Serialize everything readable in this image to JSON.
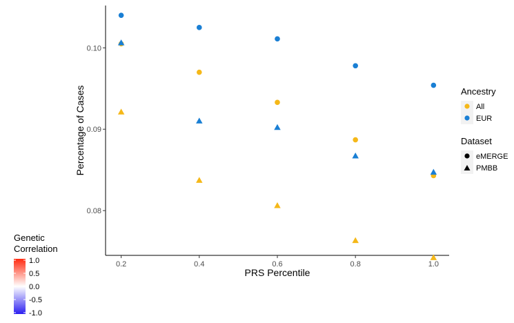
{
  "chart_data": {
    "type": "scatter",
    "xlabel": "PRS Percentile",
    "ylabel": "Percentage of Cases",
    "x": [
      0.2,
      0.4,
      0.6,
      0.8,
      1.0
    ],
    "xlim": [
      0.16,
      1.04
    ],
    "ylim": [
      0.0745,
      0.1052
    ],
    "x_ticks": [
      0.2,
      0.4,
      0.6,
      0.8,
      1.0
    ],
    "x_tick_labels": [
      "0.2",
      "0.4",
      "0.6",
      "0.8",
      "1.0"
    ],
    "y_ticks": [
      0.08,
      0.09,
      0.1
    ],
    "y_tick_labels": [
      "0.08",
      "0.09",
      "0.10"
    ],
    "grid": false,
    "series": [
      {
        "ancestry": "All",
        "dataset": "eMERGE",
        "color": "#f5b819",
        "shape": "circle",
        "values": [
          0.1005,
          0.097,
          0.0933,
          0.0887,
          0.0843
        ]
      },
      {
        "ancestry": "All",
        "dataset": "PMBB",
        "color": "#f5b819",
        "shape": "triangle",
        "values": [
          0.0921,
          0.0837,
          0.0806,
          0.0763,
          0.0742
        ]
      },
      {
        "ancestry": "EUR",
        "dataset": "eMERGE",
        "color": "#1a7fd4",
        "shape": "circle",
        "values": [
          0.104,
          0.1025,
          0.1011,
          0.0978,
          0.0954
        ]
      },
      {
        "ancestry": "EUR",
        "dataset": "PMBB",
        "color": "#1a7fd4",
        "shape": "triangle",
        "values": [
          0.1006,
          0.091,
          0.0902,
          0.0867,
          0.0847
        ]
      }
    ],
    "legends": {
      "ancestry": {
        "title": "Ancestry",
        "items": [
          {
            "label": "All",
            "color": "#f5b819"
          },
          {
            "label": "EUR",
            "color": "#1a7fd4"
          }
        ]
      },
      "dataset": {
        "title": "Dataset",
        "items": [
          {
            "label": "eMERGE",
            "shape": "circle"
          },
          {
            "label": "PMBB",
            "shape": "triangle"
          }
        ]
      },
      "genetic_correlation": {
        "title_line1": "Genetic",
        "title_line2": "Correlation",
        "ticks": [
          "1.0",
          "0.5",
          "0.0",
          "-0.5",
          "-1.0"
        ],
        "range": [
          -1.0,
          1.0
        ],
        "colors": {
          "high": "#ff2a10",
          "mid": "#ffffff",
          "low": "#2b1ef0"
        }
      }
    }
  }
}
